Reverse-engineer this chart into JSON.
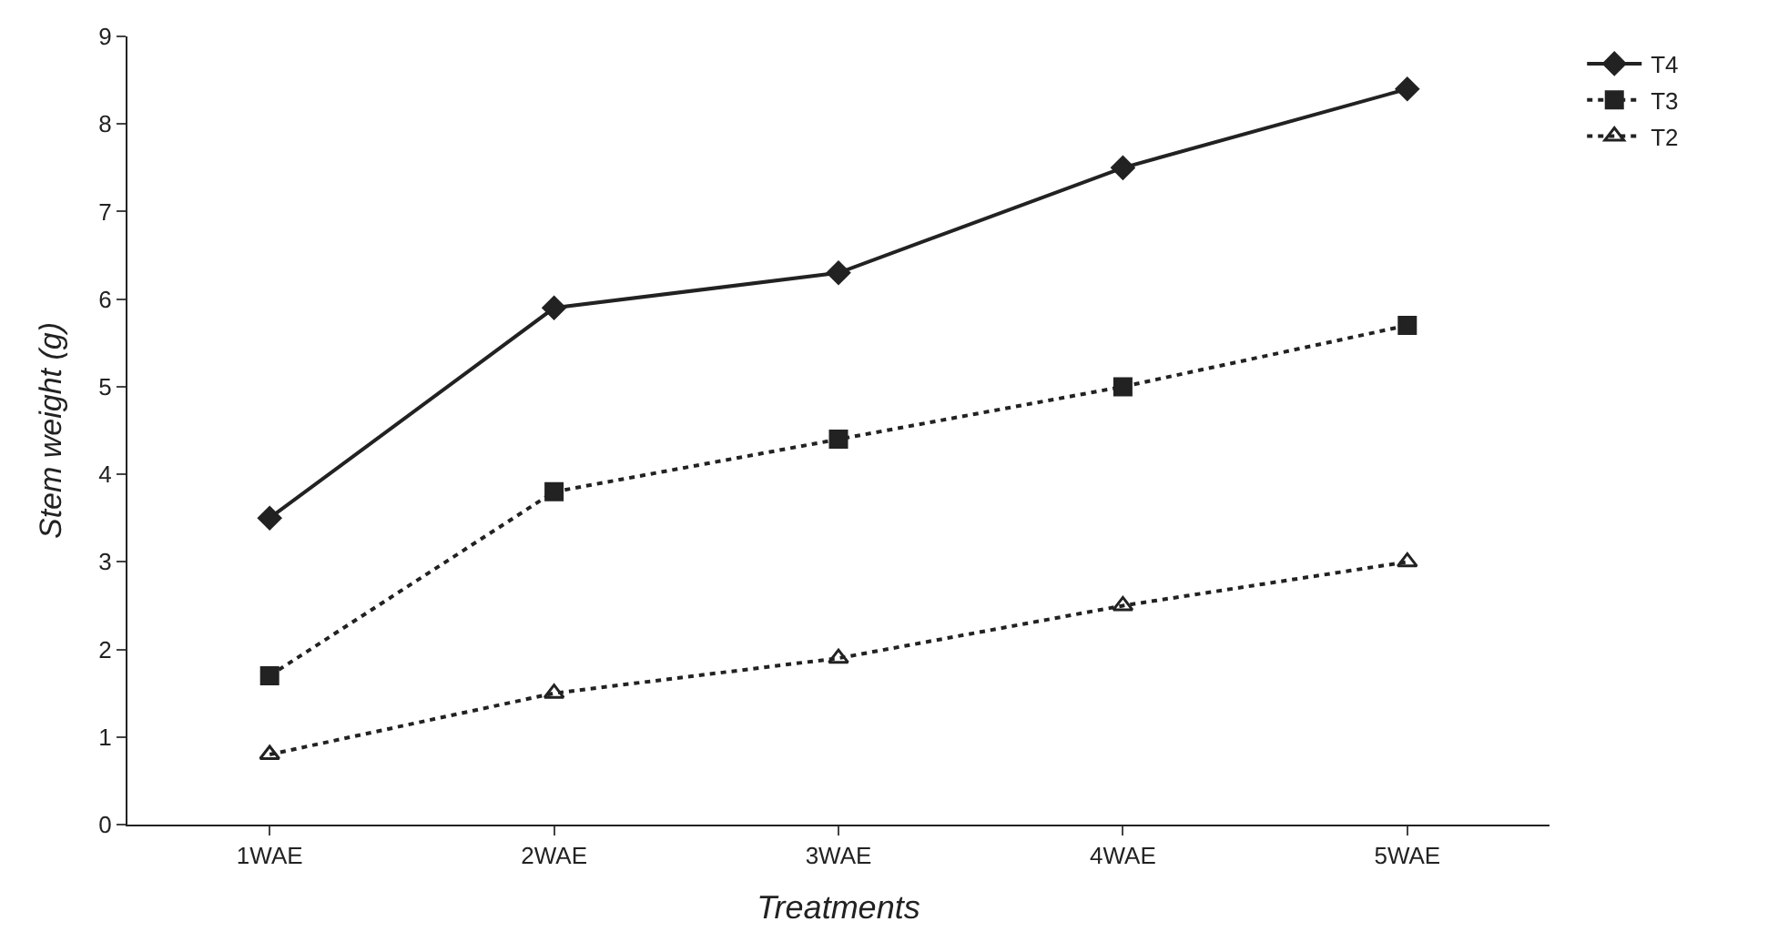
{
  "chart_data": {
    "type": "line",
    "xlabel": "Treatments",
    "ylabel": "Stem weight (g)",
    "categories": [
      "1WAE",
      "2WAE",
      "3WAE",
      "4WAE",
      "5WAE"
    ],
    "ylim": [
      0,
      9
    ],
    "yticks": [
      0,
      1,
      2,
      3,
      4,
      5,
      6,
      7,
      8,
      9
    ],
    "grid": false,
    "legend": "top right",
    "series": [
      {
        "name": "T4",
        "color": "#222222",
        "marker": "diamond",
        "line_style": "solid",
        "values": [
          3.5,
          5.9,
          6.3,
          7.5,
          8.4
        ]
      },
      {
        "name": "T3",
        "color": "#222222",
        "marker": "square",
        "line_style": "dotted",
        "values": [
          1.7,
          3.8,
          4.4,
          5.0,
          5.7
        ]
      },
      {
        "name": "T2",
        "color": "#222222",
        "marker": "triangle",
        "line_style": "dotted",
        "values": [
          0.8,
          1.5,
          1.9,
          2.5,
          3.0
        ]
      }
    ]
  }
}
